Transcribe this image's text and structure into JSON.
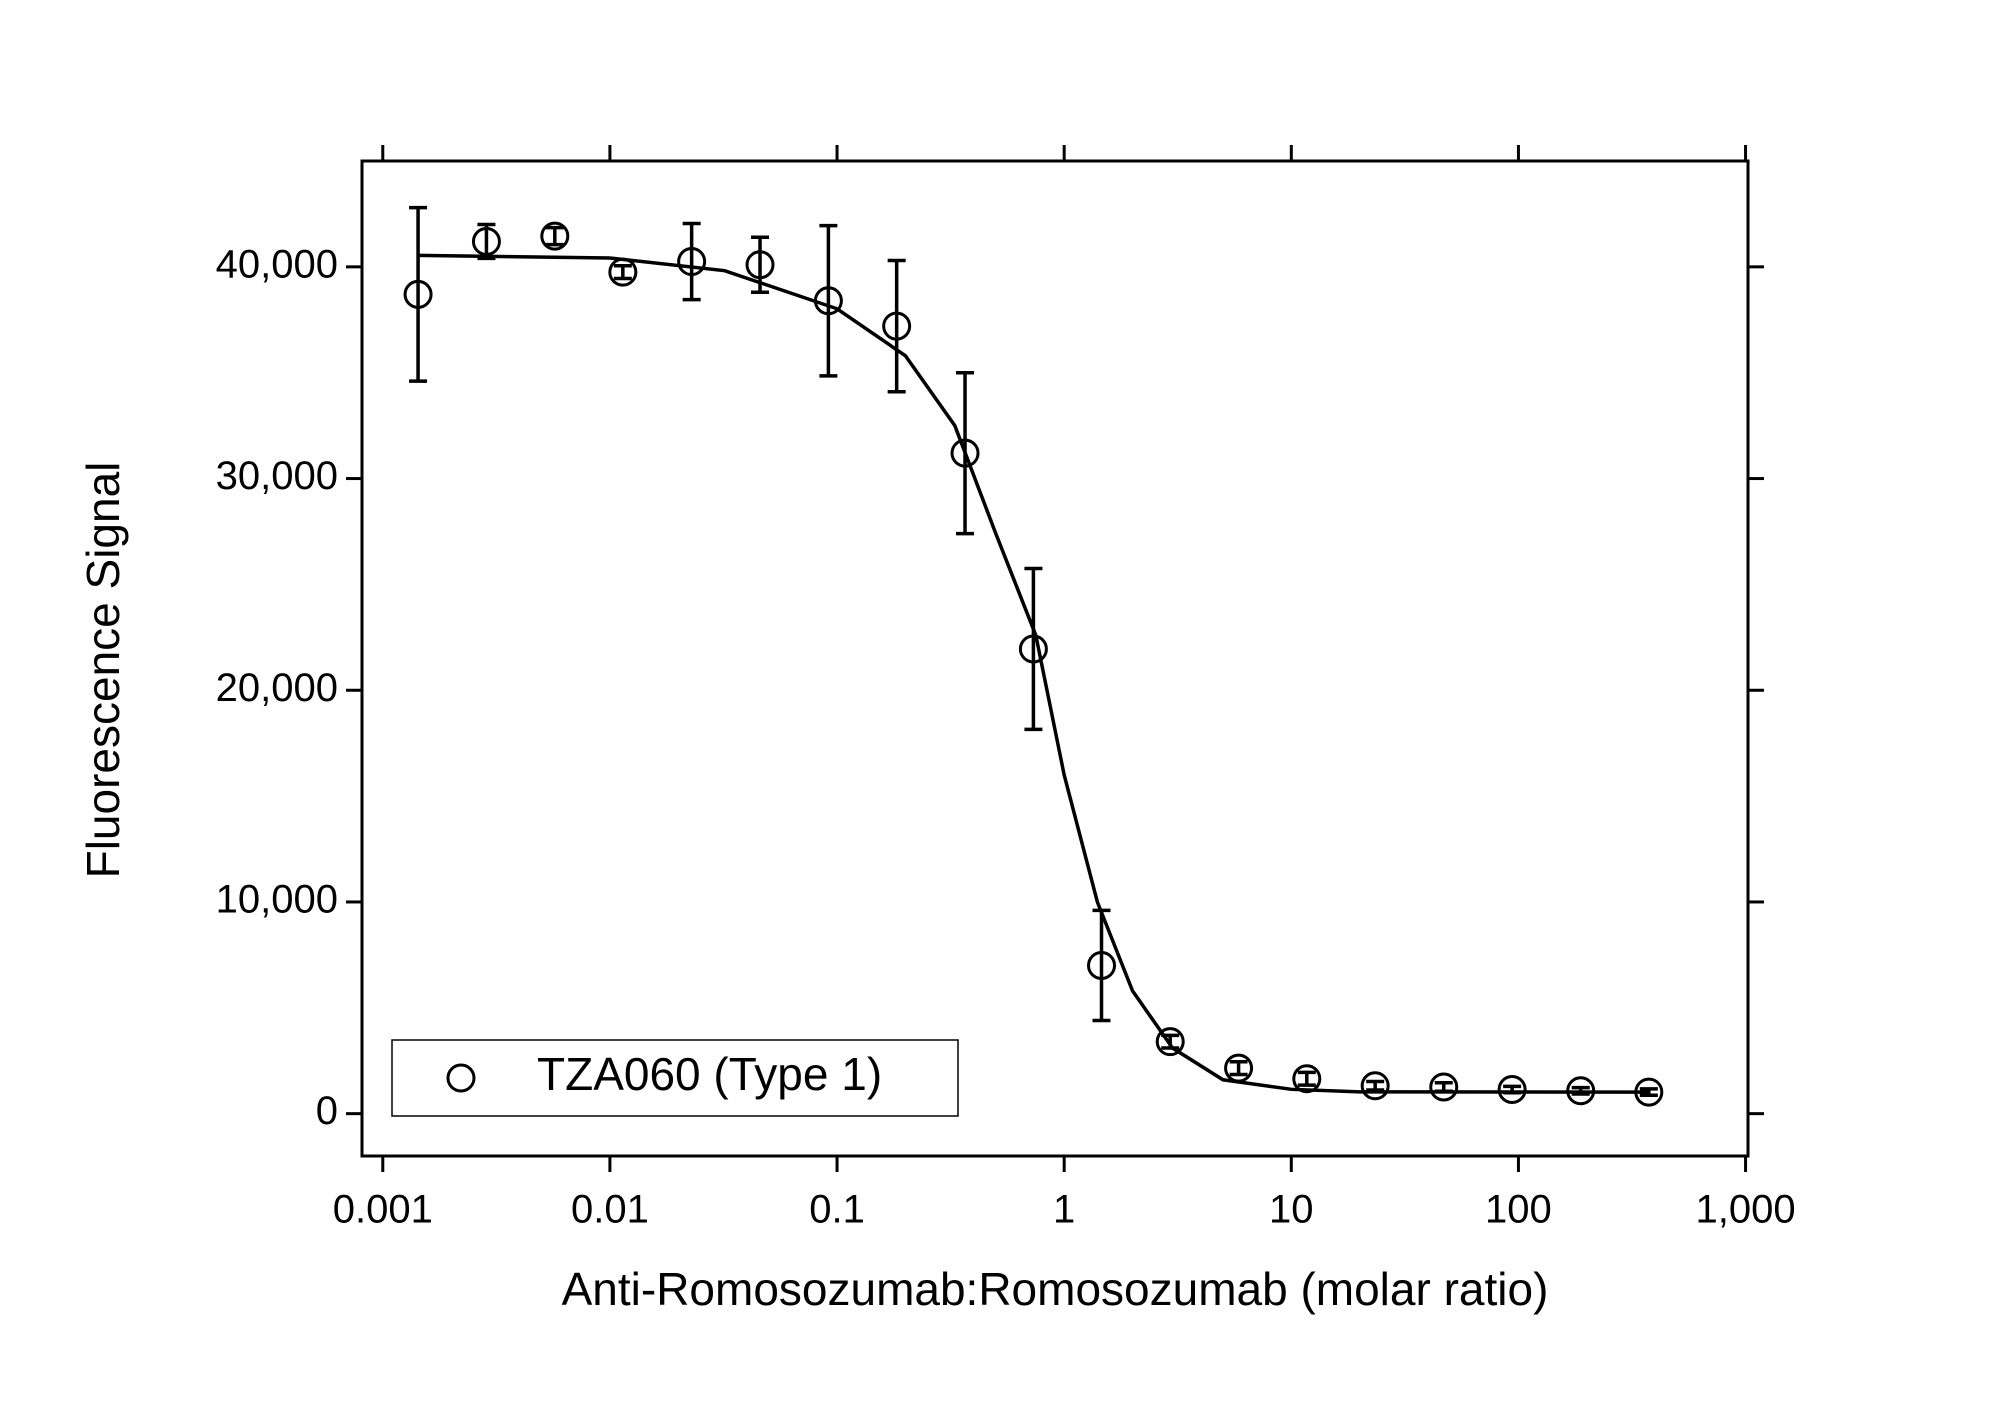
{
  "chart_data": {
    "type": "scatter",
    "x_label": "Anti-Romosozumab:Romosozumab (molar ratio)",
    "y_label": "Fluorescence Signal",
    "xscale": "log",
    "xlim": [
      0.00081,
      1025
    ],
    "ylim": [
      -2000,
      45000
    ],
    "xticks": [
      0.001,
      0.01,
      0.1,
      1,
      10,
      100,
      {
        "value": 1000,
        "label": "1,000"
      }
    ],
    "yticks": [
      0,
      {
        "value": 10000,
        "label": "10,000"
      },
      {
        "value": 20000,
        "label": "20,000"
      },
      {
        "value": 30000,
        "label": "30,000"
      },
      {
        "value": 40000,
        "label": "40,000"
      }
    ],
    "legend": "lower left",
    "series": [
      {
        "name": "TZA060 (Type 1)",
        "color": "#000000",
        "x": [
          0.00143,
          0.00286,
          0.00572,
          0.0114,
          0.0229,
          0.0458,
          0.0916,
          0.183,
          0.366,
          0.732,
          1.46,
          2.93,
          5.86,
          11.7,
          23.4,
          46.9,
          93.8,
          188,
          375
        ],
        "values": [
          38700,
          41200,
          41450,
          39750,
          40250,
          40100,
          38400,
          37200,
          31200,
          21950,
          7000,
          3400,
          2150,
          1650,
          1320,
          1260,
          1140,
          1080,
          1020
        ],
        "errors": [
          4100,
          800,
          400,
          300,
          1800,
          1300,
          3550,
          3100,
          3800,
          3800,
          2600,
          300,
          300,
          300,
          200,
          200,
          150,
          150,
          150
        ]
      }
    ],
    "fit": {
      "color": "#000000",
      "x": [
        0.00143,
        0.01,
        0.032,
        0.1,
        0.2,
        0.33,
        0.5,
        0.75,
        1,
        1.4,
        2,
        3,
        5,
        10,
        20,
        375
      ],
      "values": [
        40540,
        40420,
        39820,
        38020,
        35800,
        32500,
        27400,
        22600,
        16000,
        10000,
        5800,
        3100,
        1600,
        1150,
        1030,
        1020
      ]
    }
  }
}
